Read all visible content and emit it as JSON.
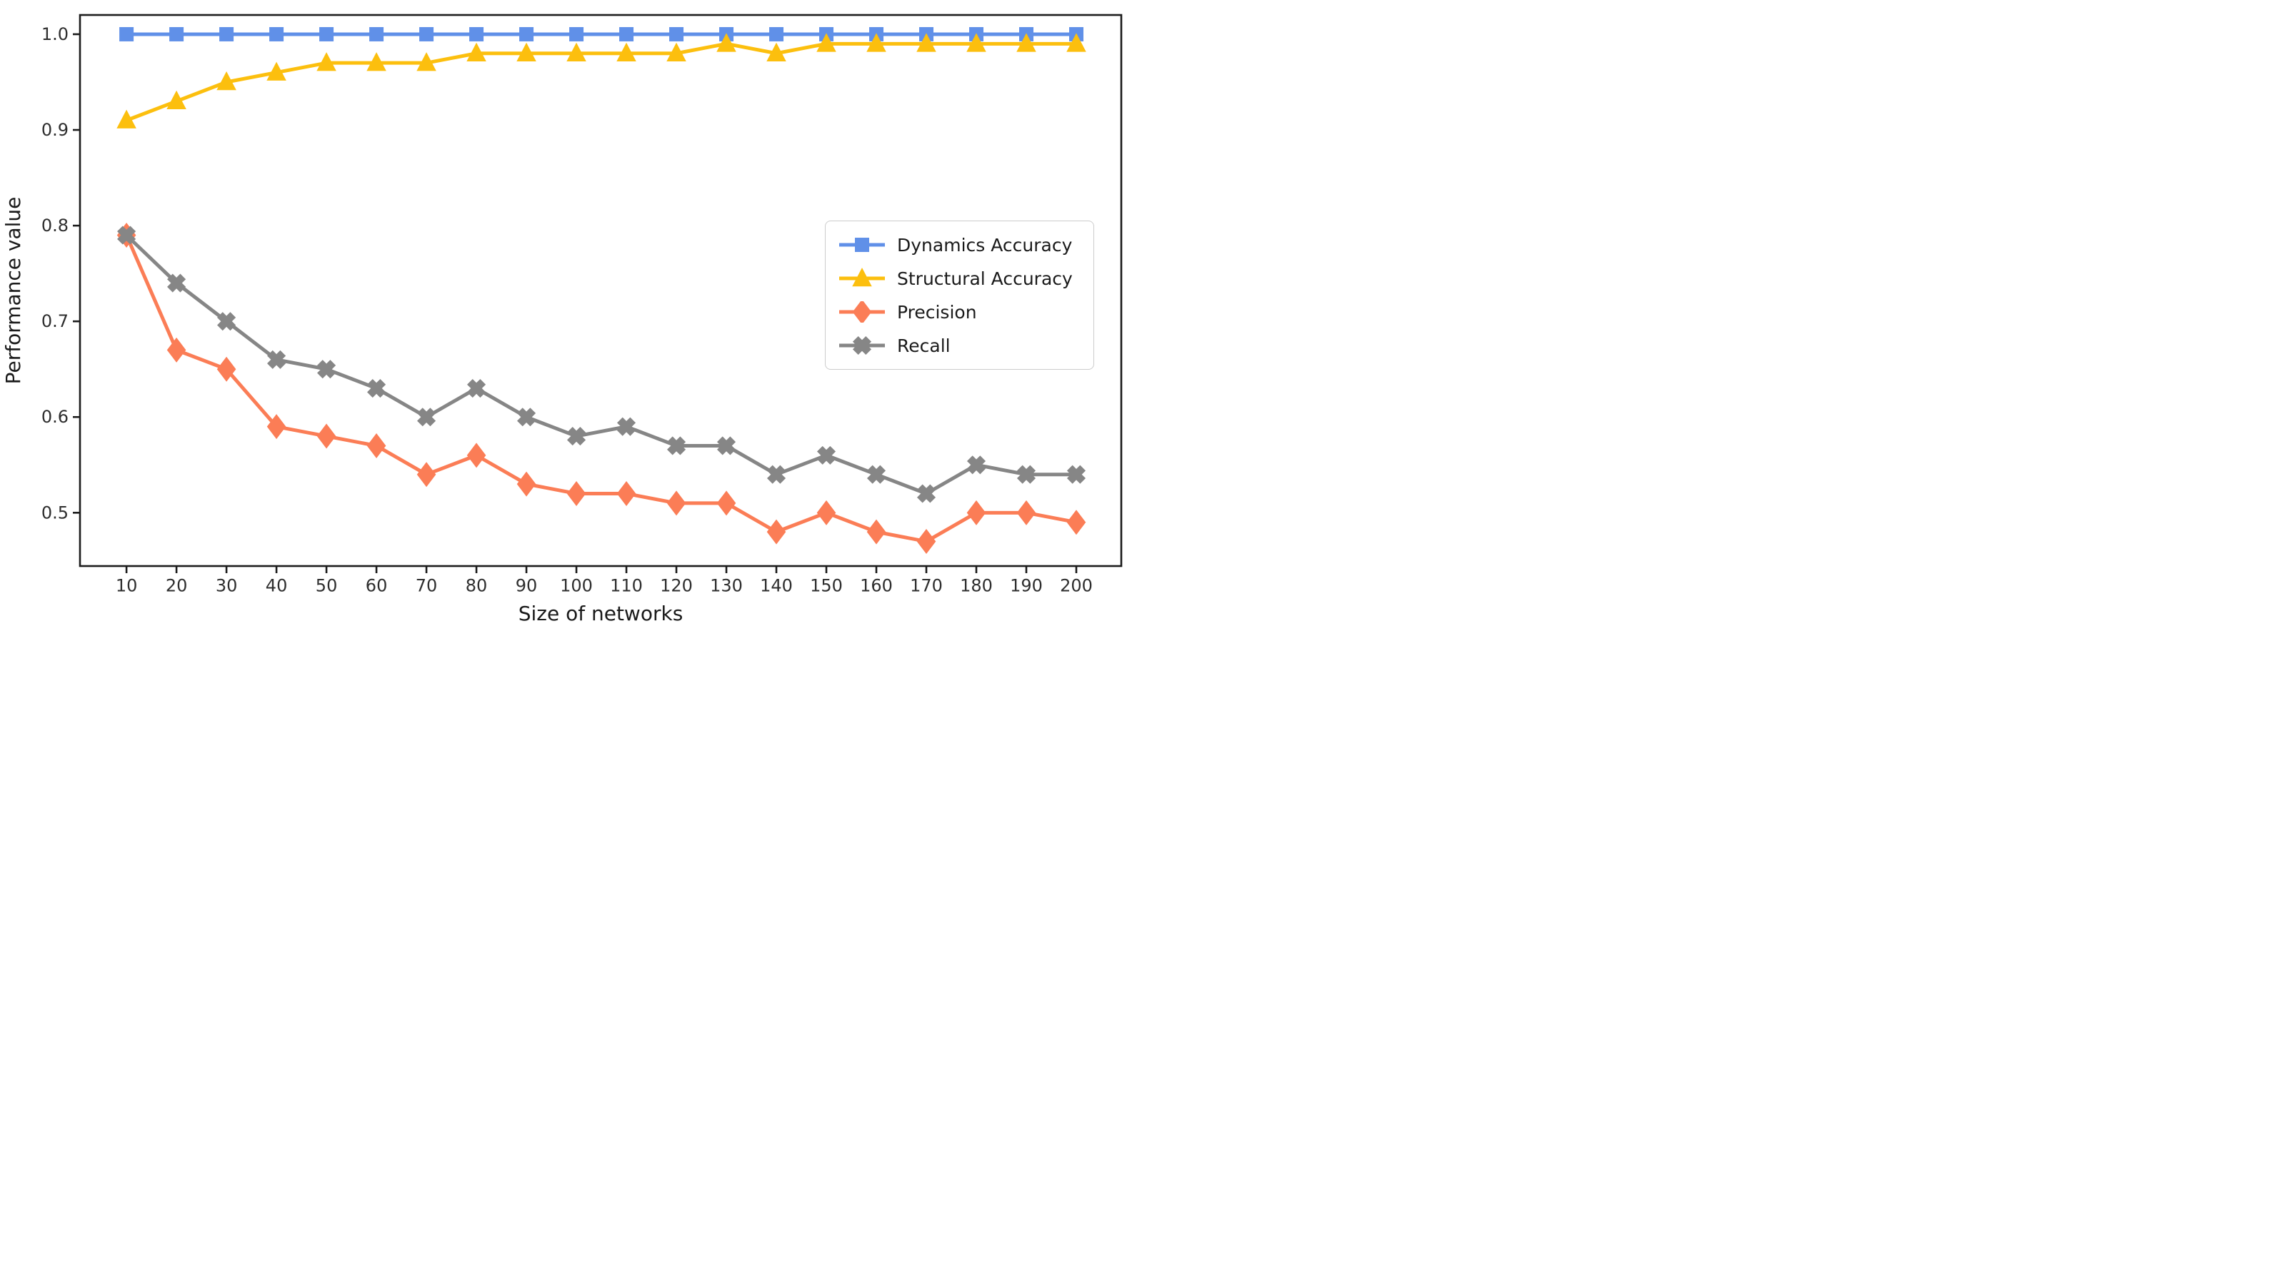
{
  "figure": {
    "background": "#ffffff"
  },
  "chart_data": {
    "type": "line",
    "title": "",
    "xlabel": "Size of networks",
    "ylabel": "Performance value",
    "x": [
      10,
      20,
      30,
      40,
      50,
      60,
      70,
      80,
      90,
      100,
      110,
      120,
      130,
      140,
      150,
      160,
      170,
      180,
      190,
      200
    ],
    "xtick_labels": [
      "10",
      "20",
      "30",
      "40",
      "50",
      "60",
      "70",
      "80",
      "90",
      "100",
      "110",
      "120",
      "130",
      "140",
      "150",
      "160",
      "170",
      "180",
      "190",
      "200"
    ],
    "ytick_values": [
      0.5,
      0.6,
      0.7,
      0.8,
      0.9,
      1.0
    ],
    "ytick_labels": [
      "0.5",
      "0.6",
      "0.7",
      "0.8",
      "0.9",
      "1.0"
    ],
    "xlim": [
      0.7,
      209
    ],
    "ylim": [
      0.4443,
      1.0201
    ],
    "grid": false,
    "legend_position": "center-right",
    "axis_color": "#1c1c1c",
    "tick_label_color": "#2e2e2e",
    "series": [
      {
        "name": "Dynamics Accuracy",
        "color": "#6090e8",
        "marker": "square",
        "values": [
          1.0,
          1.0,
          1.0,
          1.0,
          1.0,
          1.0,
          1.0,
          1.0,
          1.0,
          1.0,
          1.0,
          1.0,
          1.0,
          1.0,
          1.0,
          1.0,
          1.0,
          1.0,
          1.0,
          1.0
        ]
      },
      {
        "name": "Structural Accuracy",
        "color": "#fcbf0e",
        "marker": "triangle",
        "values": [
          0.91,
          0.93,
          0.95,
          0.96,
          0.97,
          0.97,
          0.97,
          0.98,
          0.98,
          0.98,
          0.98,
          0.98,
          0.99,
          0.98,
          0.99,
          0.99,
          0.99,
          0.99,
          0.99,
          0.99
        ]
      },
      {
        "name": "Precision",
        "color": "#fb7d56",
        "marker": "diamond",
        "values": [
          0.79,
          0.67,
          0.65,
          0.59,
          0.58,
          0.57,
          0.54,
          0.56,
          0.53,
          0.52,
          0.52,
          0.51,
          0.51,
          0.48,
          0.5,
          0.48,
          0.47,
          0.5,
          0.5,
          0.49
        ]
      },
      {
        "name": "Recall",
        "color": "#868686",
        "marker": "x",
        "values": [
          0.79,
          0.74,
          0.7,
          0.66,
          0.65,
          0.63,
          0.6,
          0.63,
          0.6,
          0.58,
          0.59,
          0.57,
          0.57,
          0.54,
          0.56,
          0.54,
          0.52,
          0.55,
          0.54,
          0.54
        ]
      }
    ]
  }
}
